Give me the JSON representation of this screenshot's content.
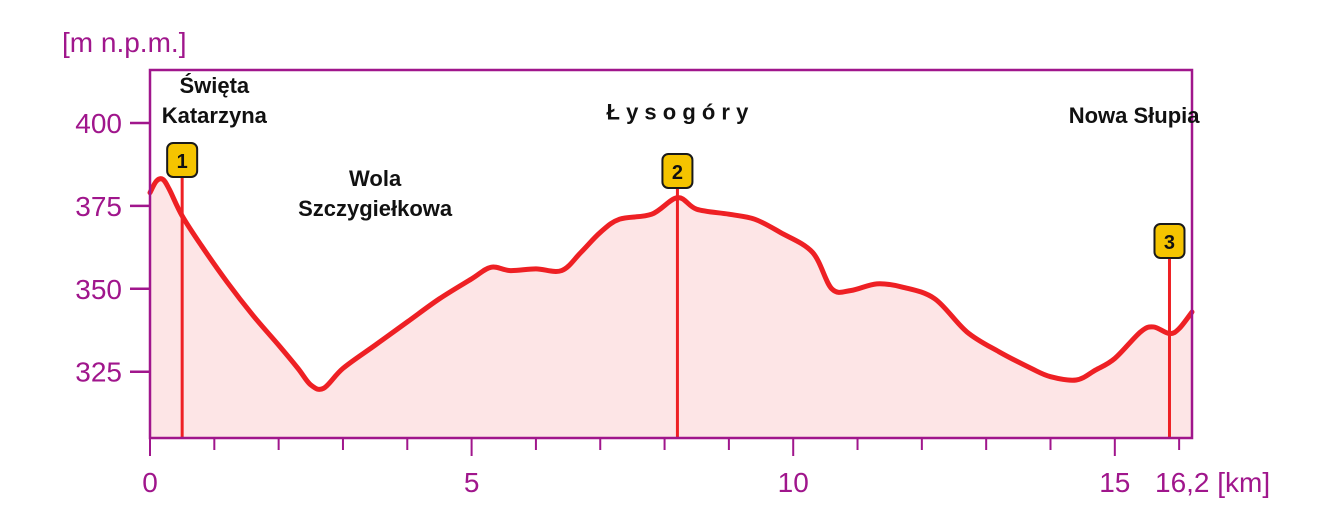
{
  "chart_data": {
    "type": "area",
    "ylabel": "[m n.p.m.]",
    "xlabel_end": "16,2 [km]",
    "xlim": [
      0,
      16.2
    ],
    "ylim": [
      305,
      416
    ],
    "y_ticks": [
      325,
      350,
      375,
      400
    ],
    "x_ticks": [
      0,
      5,
      10,
      15
    ],
    "x_tick_labels": [
      "0",
      "5",
      "10",
      "15"
    ],
    "x_minor_step": 1,
    "colors": {
      "line": "#ee2024",
      "fill": "#fde5e6",
      "axis": "#a0168c",
      "marker": "#ee2024",
      "badge": "#f5c400"
    },
    "series": [
      {
        "points": [
          [
            0.0,
            379
          ],
          [
            0.1,
            382.5
          ],
          [
            0.2,
            383
          ],
          [
            0.3,
            380
          ],
          [
            0.5,
            372
          ],
          [
            0.8,
            363
          ],
          [
            1.2,
            352
          ],
          [
            1.6,
            342
          ],
          [
            2.0,
            333
          ],
          [
            2.3,
            326
          ],
          [
            2.5,
            321
          ],
          [
            2.7,
            320
          ],
          [
            3.0,
            326
          ],
          [
            3.5,
            333
          ],
          [
            4.0,
            340
          ],
          [
            4.5,
            347
          ],
          [
            5.0,
            353
          ],
          [
            5.3,
            356.5
          ],
          [
            5.6,
            355.5
          ],
          [
            6.0,
            356
          ],
          [
            6.4,
            355.5
          ],
          [
            6.7,
            361
          ],
          [
            7.0,
            367
          ],
          [
            7.3,
            371
          ],
          [
            7.8,
            372.5
          ],
          [
            8.2,
            377.5
          ],
          [
            8.5,
            374
          ],
          [
            9.0,
            372.5
          ],
          [
            9.4,
            371
          ],
          [
            9.8,
            367
          ],
          [
            10.3,
            361
          ],
          [
            10.6,
            350
          ],
          [
            10.9,
            349.5
          ],
          [
            11.3,
            351.5
          ],
          [
            11.7,
            350.5
          ],
          [
            12.2,
            347
          ],
          [
            12.7,
            337
          ],
          [
            13.2,
            331
          ],
          [
            13.7,
            326
          ],
          [
            14.0,
            323.5
          ],
          [
            14.4,
            322.5
          ],
          [
            14.7,
            325.5
          ],
          [
            15.0,
            329
          ],
          [
            15.4,
            337
          ],
          [
            15.6,
            338.5
          ],
          [
            15.85,
            336.5
          ],
          [
            16.0,
            338
          ],
          [
            16.2,
            343
          ]
        ]
      }
    ],
    "markers": [
      {
        "label": "1",
        "x": 0.5
      },
      {
        "label": "2",
        "x": 8.2
      },
      {
        "label": "3",
        "x": 15.85
      }
    ],
    "annotations": [
      {
        "lines": [
          "Święta",
          "Katarzyna"
        ],
        "x": 1.0,
        "y": 409
      },
      {
        "lines": [
          "Wola",
          "Szczygiełkowa"
        ],
        "x": 3.5,
        "y": 381
      },
      {
        "lines": [
          "Ł y s o g ó r y"
        ],
        "x": 8.2,
        "y": 401
      },
      {
        "lines": [
          "Nowa Słupia"
        ],
        "x": 15.3,
        "y": 400
      }
    ]
  }
}
